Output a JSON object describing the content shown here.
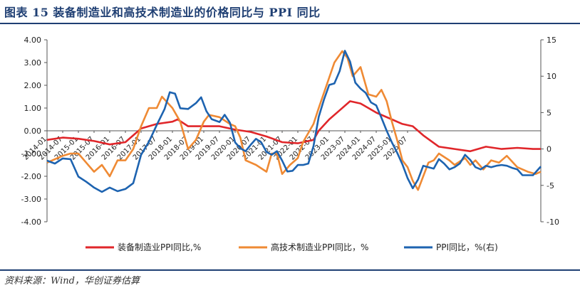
{
  "header": {
    "title": "图表 15   装备制造业和高技术制造业的价格同比与 PPI 同比"
  },
  "footer": {
    "source": "资料来源：Wind，华创证券估算"
  },
  "colors": {
    "equipment": "#e0262a",
    "hightech": "#ef8a34",
    "ppi": "#1d63b0",
    "brand": "#1f3f73"
  },
  "chart_data": {
    "type": "line",
    "x_ticks": [
      "2014-01",
      "2014-07",
      "2015-01",
      "2015-07",
      "2016-01",
      "2016-07",
      "2017-01",
      "2017-07",
      "2018-01",
      "2018-07",
      "2019-01",
      "2019-07",
      "2020-01",
      "2020-07",
      "2021-01",
      "2021-07",
      "2022-01",
      "2022-07",
      "2023-01",
      "2023-07",
      "2024-01",
      "2024-07",
      "2025-01",
      "2025-07"
    ],
    "y_left": {
      "ticks": [
        "4.00",
        "3.00",
        "2.00",
        "1.00",
        "0.00",
        "-1.00",
        "-2.00",
        "-3.00",
        "-4.00"
      ],
      "lim": [
        -4,
        4
      ]
    },
    "y_right": {
      "ticks": [
        "15",
        "10",
        "5",
        "0",
        "-5",
        "-10"
      ],
      "lim": [
        -10,
        15
      ]
    },
    "series": [
      {
        "name": "装备制造业PPI同比,%",
        "axis": "left",
        "color": "#e0262a",
        "points": [
          [
            0,
            -0.4
          ],
          [
            6,
            -0.3
          ],
          [
            12,
            -0.35
          ],
          [
            18,
            -0.45
          ],
          [
            24,
            -0.6
          ],
          [
            30,
            -0.5
          ],
          [
            33,
            -0.2
          ],
          [
            36,
            0.1
          ],
          [
            42,
            0.3
          ],
          [
            48,
            0.4
          ],
          [
            50,
            0.5
          ],
          [
            54,
            0.2
          ],
          [
            60,
            0.2
          ],
          [
            66,
            0.2
          ],
          [
            72,
            0.05
          ],
          [
            78,
            -0.05
          ],
          [
            84,
            -0.25
          ],
          [
            90,
            -0.5
          ],
          [
            96,
            -0.55
          ],
          [
            102,
            -0.4
          ],
          [
            104,
            0.0
          ],
          [
            108,
            0.5
          ],
          [
            112,
            0.9
          ],
          [
            116,
            1.3
          ],
          [
            120,
            1.2
          ],
          [
            126,
            0.8
          ],
          [
            132,
            0.5
          ],
          [
            136,
            0.3
          ],
          [
            140,
            0.2
          ],
          [
            144,
            -0.2
          ],
          [
            150,
            -0.7
          ],
          [
            156,
            -0.8
          ],
          [
            162,
            -0.9
          ],
          [
            168,
            -0.7
          ],
          [
            174,
            -0.8
          ],
          [
            180,
            -0.75
          ],
          [
            186,
            -0.8
          ],
          [
            189,
            -0.8
          ]
        ]
      },
      {
        "name": "高技术制造业PPI同比，%",
        "axis": "left",
        "color": "#ef8a34",
        "points": [
          [
            0,
            -1.4
          ],
          [
            6,
            -1.1
          ],
          [
            9,
            -1.0
          ],
          [
            12,
            -1.0
          ],
          [
            15,
            -1.4
          ],
          [
            18,
            -1.8
          ],
          [
            21,
            -1.5
          ],
          [
            24,
            -2.0
          ],
          [
            27,
            -1.3
          ],
          [
            30,
            -1.3
          ],
          [
            33,
            -0.8
          ],
          [
            36,
            0.2
          ],
          [
            39,
            1.0
          ],
          [
            42,
            1.0
          ],
          [
            44,
            1.5
          ],
          [
            48,
            1.0
          ],
          [
            51,
            0.4
          ],
          [
            54,
            -0.8
          ],
          [
            57,
            -0.4
          ],
          [
            60,
            0.4
          ],
          [
            62,
            0.7
          ],
          [
            66,
            0.6
          ],
          [
            70,
            0.3
          ],
          [
            72,
            0.2
          ],
          [
            74,
            -0.3
          ],
          [
            76,
            -1.3
          ],
          [
            80,
            -1.5
          ],
          [
            84,
            -1.8
          ],
          [
            86,
            -1.0
          ],
          [
            88,
            -1.0
          ],
          [
            90,
            -1.9
          ],
          [
            93,
            -1.5
          ],
          [
            96,
            -1.2
          ],
          [
            98,
            -0.5
          ],
          [
            102,
            0.3
          ],
          [
            104,
            1.0
          ],
          [
            107,
            2.0
          ],
          [
            110,
            3.0
          ],
          [
            113,
            3.5
          ],
          [
            115,
            3.2
          ],
          [
            117,
            2.4
          ],
          [
            120,
            2.8
          ],
          [
            123,
            1.6
          ],
          [
            126,
            1.5
          ],
          [
            128,
            1.8
          ],
          [
            130,
            1.3
          ],
          [
            132,
            0.4
          ],
          [
            134,
            -0.4
          ],
          [
            136,
            -1.3
          ],
          [
            138,
            -1.6
          ],
          [
            140,
            -2.2
          ],
          [
            142,
            -2.6
          ],
          [
            144,
            -2.0
          ],
          [
            146,
            -1.4
          ],
          [
            148,
            -1.3
          ],
          [
            150,
            -1.0
          ],
          [
            154,
            -1.3
          ],
          [
            156,
            -1.5
          ],
          [
            160,
            -1.2
          ],
          [
            162,
            -1.5
          ],
          [
            164,
            -1.3
          ],
          [
            167,
            -1.7
          ],
          [
            170,
            -1.3
          ],
          [
            173,
            -1.4
          ],
          [
            176,
            -1.1
          ],
          [
            180,
            -1.6
          ],
          [
            184,
            -1.8
          ],
          [
            187,
            -1.9
          ],
          [
            189,
            -1.8
          ]
        ]
      },
      {
        "name": "PPI同比，%(右)",
        "axis": "right",
        "color": "#1d63b0",
        "points": [
          [
            0,
            -1.6
          ],
          [
            3,
            -2.0
          ],
          [
            6,
            -1.3
          ],
          [
            9,
            -1.4
          ],
          [
            12,
            -3.8
          ],
          [
            15,
            -4.5
          ],
          [
            18,
            -5.3
          ],
          [
            21,
            -5.9
          ],
          [
            24,
            -5.3
          ],
          [
            27,
            -5.8
          ],
          [
            30,
            -5.5
          ],
          [
            33,
            -4.7
          ],
          [
            36,
            -0.8
          ],
          [
            39,
            1.0
          ],
          [
            42,
            3.3
          ],
          [
            45,
            5.5
          ],
          [
            47,
            7.8
          ],
          [
            49,
            7.6
          ],
          [
            51,
            5.6
          ],
          [
            54,
            5.5
          ],
          [
            57,
            6.3
          ],
          [
            59,
            7.1
          ],
          [
            61,
            5.2
          ],
          [
            63,
            4.1
          ],
          [
            66,
            3.7
          ],
          [
            68,
            4.7
          ],
          [
            70,
            3.6
          ],
          [
            72,
            0.9
          ],
          [
            74,
            0.1
          ],
          [
            76,
            -0.3
          ],
          [
            78,
            0.6
          ],
          [
            80,
            1.4
          ],
          [
            82,
            0.9
          ],
          [
            84,
            -0.4
          ],
          [
            86,
            -0.8
          ],
          [
            88,
            -0.3
          ],
          [
            90,
            -1.6
          ],
          [
            92,
            -3.1
          ],
          [
            94,
            -3.0
          ],
          [
            96,
            -2.2
          ],
          [
            98,
            -2.2
          ],
          [
            100,
            -2.0
          ],
          [
            102,
            0.4
          ],
          [
            104,
            4.4
          ],
          [
            106,
            6.8
          ],
          [
            108,
            8.8
          ],
          [
            110,
            9.0
          ],
          [
            112,
            10.7
          ],
          [
            114,
            13.5
          ],
          [
            116,
            12.0
          ],
          [
            118,
            9.1
          ],
          [
            120,
            8.3
          ],
          [
            122,
            7.7
          ],
          [
            124,
            6.4
          ],
          [
            126,
            6.0
          ],
          [
            128,
            4.3
          ],
          [
            130,
            2.5
          ],
          [
            132,
            0.9
          ],
          [
            134,
            -0.5
          ],
          [
            136,
            -2.1
          ],
          [
            138,
            -4.0
          ],
          [
            140,
            -5.4
          ],
          [
            142,
            -4.2
          ],
          [
            144,
            -2.3
          ],
          [
            146,
            -2.5
          ],
          [
            148,
            -2.7
          ],
          [
            150,
            -1.4
          ],
          [
            152,
            -2.0
          ],
          [
            154,
            -2.8
          ],
          [
            156,
            -2.5
          ],
          [
            158,
            -2.0
          ],
          [
            160,
            -0.8
          ],
          [
            162,
            -1.5
          ],
          [
            164,
            -2.5
          ],
          [
            166,
            -2.8
          ],
          [
            168,
            -2.3
          ],
          [
            170,
            -2.5
          ],
          [
            172,
            -2.3
          ],
          [
            174,
            -2.2
          ],
          [
            176,
            -2.3
          ],
          [
            178,
            -2.6
          ],
          [
            180,
            -2.8
          ],
          [
            182,
            -3.6
          ],
          [
            184,
            -3.6
          ],
          [
            186,
            -3.6
          ],
          [
            189,
            -2.4
          ]
        ]
      }
    ]
  }
}
